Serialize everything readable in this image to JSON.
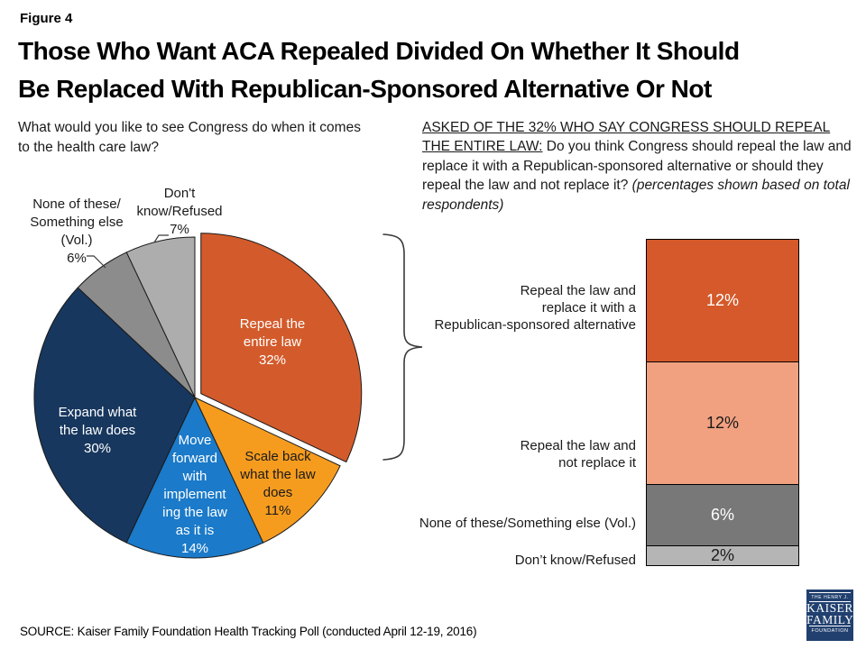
{
  "figure_label": "Figure 4",
  "title_lines": [
    "Those Who Want ACA Repealed Divided On Whether It Should",
    "Be Replaced With Republican-Sponsored Alternative Or Not"
  ],
  "question_left_lines": [
    "What would you like to see Congress do when it comes",
    "to the health care law?"
  ],
  "question_right": {
    "underlined": "ASKED OF THE 32% WHO SAY CONGRESS SHOULD REPEAL THE ENTIRE LAW:",
    "normal": " Do you think Congress should repeal the law and replace it with a Republican-sponsored alternative or should they repeal the law and not replace it? ",
    "italic": "(percentages shown based on total respondents)"
  },
  "source": "SOURCE: Kaiser Family Foundation Health Tracking Poll (conducted April 12-19, 2016)",
  "logo": {
    "line1": "THE HENRY J.",
    "line2": "KAISER",
    "line3": "FAMILY",
    "line4": "FOUNDATION"
  },
  "chart_data": [
    {
      "type": "pie",
      "question": "What would you like to see Congress do when it comes to the health care law?",
      "start_angle_deg": 0,
      "direction": "clockwise",
      "slices": [
        {
          "label": "Repeal the entire law",
          "value": 32,
          "color": "#D35B2B",
          "text_color": "#ffffff",
          "exploded": true,
          "label_lines": [
            "Repeal the",
            "entire law",
            "32%"
          ]
        },
        {
          "label": "Scale back what the law does",
          "value": 11,
          "color": "#F59C1F",
          "text_color": "#1a1a1a",
          "exploded": false,
          "label_lines": [
            "Scale back",
            "what the law",
            "does",
            "11%"
          ]
        },
        {
          "label": "Move forward with implementing the law as it is",
          "value": 14,
          "color": "#1B7AC9",
          "text_color": "#ffffff",
          "exploded": false,
          "label_lines": [
            "Move",
            "forward",
            "with",
            "implement",
            "ing the law",
            "as it is",
            "14%"
          ]
        },
        {
          "label": "Expand what the law does",
          "value": 30,
          "color": "#17375E",
          "text_color": "#ffffff",
          "exploded": false,
          "label_lines": [
            "Expand what",
            "the law does",
            "30%"
          ]
        },
        {
          "label": "None of these/Something else (Vol.)",
          "value": 6,
          "color": "#8C8C8C",
          "text_color": "#1a1a1a",
          "exploded": false,
          "label_lines": [
            "None of these/",
            "Something else",
            "(Vol.)",
            "6%"
          ]
        },
        {
          "label": "Don't know/Refused",
          "value": 7,
          "color": "#ADADAD",
          "text_color": "#1a1a1a",
          "exploded": false,
          "label_lines": [
            "Don't",
            "know/Refused",
            "7%"
          ]
        }
      ]
    },
    {
      "type": "bar",
      "stacked": true,
      "question": "Do you think Congress should repeal the law and replace it with a Republican-sponsored alternative or should they repeal the law and not replace it?",
      "total_of_parent_slice": "32%",
      "segments": [
        {
          "label_lines": [
            "Repeal the law and",
            "replace it with a",
            "Republican-sponsored alternative"
          ],
          "label": "Repeal the law and replace it with a Republican-sponsored alternative",
          "value": 12,
          "value_label": "12%",
          "color": "#D5592A",
          "text_color": "#ffffff"
        },
        {
          "label_lines": [
            "Repeal the law and",
            "not replace it"
          ],
          "label": "Repeal the law and not replace it",
          "value": 12,
          "value_label": "12%",
          "color": "#F1A180",
          "text_color": "#1a1a1a"
        },
        {
          "label_lines": [
            "None of these/Something else (Vol.)"
          ],
          "label": "None of these/Something else (Vol.)",
          "value": 6,
          "value_label": "6%",
          "color": "#787878",
          "text_color": "#ffffff"
        },
        {
          "label_lines": [
            "Don’t know/Refused"
          ],
          "label": "Don’t know/Refused",
          "value": 2,
          "value_label": "2%",
          "color": "#B5B5B5",
          "text_color": "#1a1a1a"
        }
      ]
    }
  ]
}
